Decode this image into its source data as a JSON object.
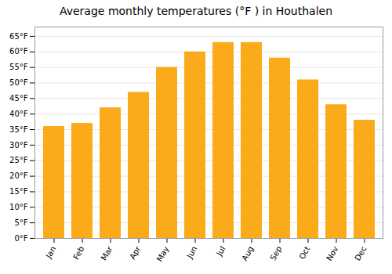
{
  "chart_data": {
    "type": "bar",
    "title": "Average monthly temperatures (°F ) in Houthalen",
    "categories": [
      "Jan",
      "Feb",
      "Mar",
      "Apr",
      "May",
      "Jun",
      "Jul",
      "Aug",
      "Sep",
      "Oct",
      "Nov",
      "Dec"
    ],
    "values": [
      36,
      37,
      42,
      47,
      55,
      60,
      63,
      63,
      58,
      51,
      43,
      38
    ],
    "color": "#FBAA19",
    "ylim": [
      0,
      68
    ],
    "yticks": [
      {
        "value": 0,
        "label": "0°F"
      },
      {
        "value": 5,
        "label": "5°F"
      },
      {
        "value": 10,
        "label": "10°F"
      },
      {
        "value": 15,
        "label": "15°F"
      },
      {
        "value": 20,
        "label": "20°F"
      },
      {
        "value": 25,
        "label": "25°F"
      },
      {
        "value": 30,
        "label": "30°F"
      },
      {
        "value": 35,
        "label": "35°F"
      },
      {
        "value": 40,
        "label": "40°F"
      },
      {
        "value": 45,
        "label": "45°F"
      },
      {
        "value": 50,
        "label": "50°F"
      },
      {
        "value": 55,
        "label": "55°F"
      },
      {
        "value": 60,
        "label": "60°F"
      },
      {
        "value": 65,
        "label": "65°F"
      }
    ],
    "grid": true
  }
}
